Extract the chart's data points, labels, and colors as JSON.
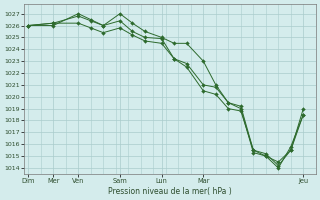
{
  "title": "",
  "xlabel": "Pression niveau de la mer( hPa )",
  "ylabel": "",
  "bg_color": "#d4ecec",
  "grid_color": "#aacccc",
  "line_color": "#2d6a2d",
  "marker_color": "#2d6a2d",
  "ylim": [
    1013.5,
    1027.8
  ],
  "yticks": [
    1014,
    1015,
    1016,
    1017,
    1018,
    1019,
    1020,
    1021,
    1022,
    1023,
    1024,
    1025,
    1026,
    1027
  ],
  "xtick_major_labels": [
    "Dim",
    "Mer",
    "Ven",
    "Sam",
    "Lun",
    "Mar",
    "Jeu"
  ],
  "xtick_major_pos": [
    0,
    3,
    6,
    11,
    16,
    21,
    33
  ],
  "xlim": [
    -0.5,
    34.5
  ],
  "series1_x": [
    0,
    3,
    6,
    7.5,
    9,
    11,
    12.5,
    14,
    16,
    17.5,
    19,
    21,
    22.5,
    24,
    25.5,
    27,
    28.5,
    30,
    31.5,
    33
  ],
  "series1_y": [
    1026.0,
    1026.0,
    1027.0,
    1026.5,
    1026.0,
    1027.0,
    1026.2,
    1025.5,
    1025.0,
    1024.5,
    1024.5,
    1023.0,
    1021.0,
    1019.5,
    1019.0,
    1015.3,
    1015.0,
    1014.0,
    1015.8,
    1018.5
  ],
  "series2_x": [
    0,
    3,
    6,
    7.5,
    9,
    11,
    12.5,
    14,
    16,
    17.5,
    19,
    21,
    22.5,
    24,
    25.5,
    27,
    28.5,
    30,
    31.5,
    33
  ],
  "series2_y": [
    1026.0,
    1026.2,
    1026.2,
    1025.8,
    1025.4,
    1025.8,
    1025.2,
    1024.7,
    1024.5,
    1023.2,
    1022.8,
    1021.0,
    1020.8,
    1019.5,
    1019.2,
    1015.5,
    1015.2,
    1014.2,
    1015.5,
    1018.5
  ],
  "series3_x": [
    0,
    3,
    6,
    7.5,
    9,
    11,
    12.5,
    14,
    16,
    17.5,
    19,
    21,
    22.5,
    24,
    25.5,
    27,
    28.5,
    30,
    31.5,
    33
  ],
  "series3_y": [
    1026.0,
    1026.2,
    1026.8,
    1026.4,
    1026.0,
    1026.4,
    1025.5,
    1025.0,
    1024.9,
    1023.2,
    1022.5,
    1020.5,
    1020.2,
    1019.0,
    1018.8,
    1015.5,
    1015.0,
    1014.5,
    1015.5,
    1019.0
  ]
}
